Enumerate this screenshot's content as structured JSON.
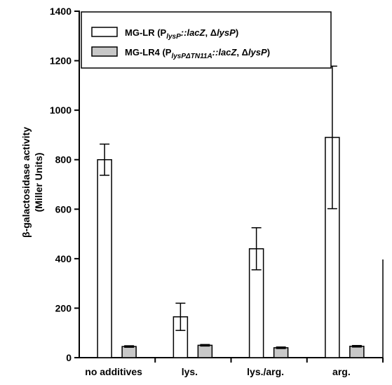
{
  "chart_data": {
    "type": "bar",
    "title": "",
    "xlabel": "",
    "ylabel": {
      "line1_prefix": "β",
      "line1_rest": "-galactosidase activity",
      "line2": "(Miller Units)"
    },
    "ylim": [
      0,
      1400
    ],
    "yticks": [
      0,
      200,
      400,
      600,
      800,
      1000,
      1200,
      1400
    ],
    "yticks_labels": [
      "0",
      "200",
      "400",
      "600",
      "800",
      "1000",
      "1200",
      "1400"
    ],
    "categories": [
      "no additives",
      "lys.",
      "lys./arg.",
      "arg."
    ],
    "legend_placement": "top-left",
    "grid": false,
    "series": [
      {
        "legend": {
          "main": "MG-LR (P",
          "sub": "lysP",
          "after_sub": "::",
          "gene": "lacZ",
          "sep": ", ",
          "delta": "Δ",
          "deleted": "lysP",
          "close": ")"
        },
        "color": "#ffffff",
        "values": [
          800,
          165,
          440,
          890
        ],
        "errors": [
          63,
          55,
          85,
          288
        ]
      },
      {
        "legend": {
          "main": "MG-LR4 (P",
          "sub": "lysPΔTN11A",
          "after_sub": "::",
          "gene": "lacZ",
          "sep": ", ",
          "delta": "Δ",
          "deleted": "lysP",
          "close": ")"
        },
        "color": "#c8c8c8",
        "values": [
          45,
          50,
          40,
          46
        ],
        "errors": [
          3,
          3,
          3,
          3
        ]
      }
    ]
  }
}
